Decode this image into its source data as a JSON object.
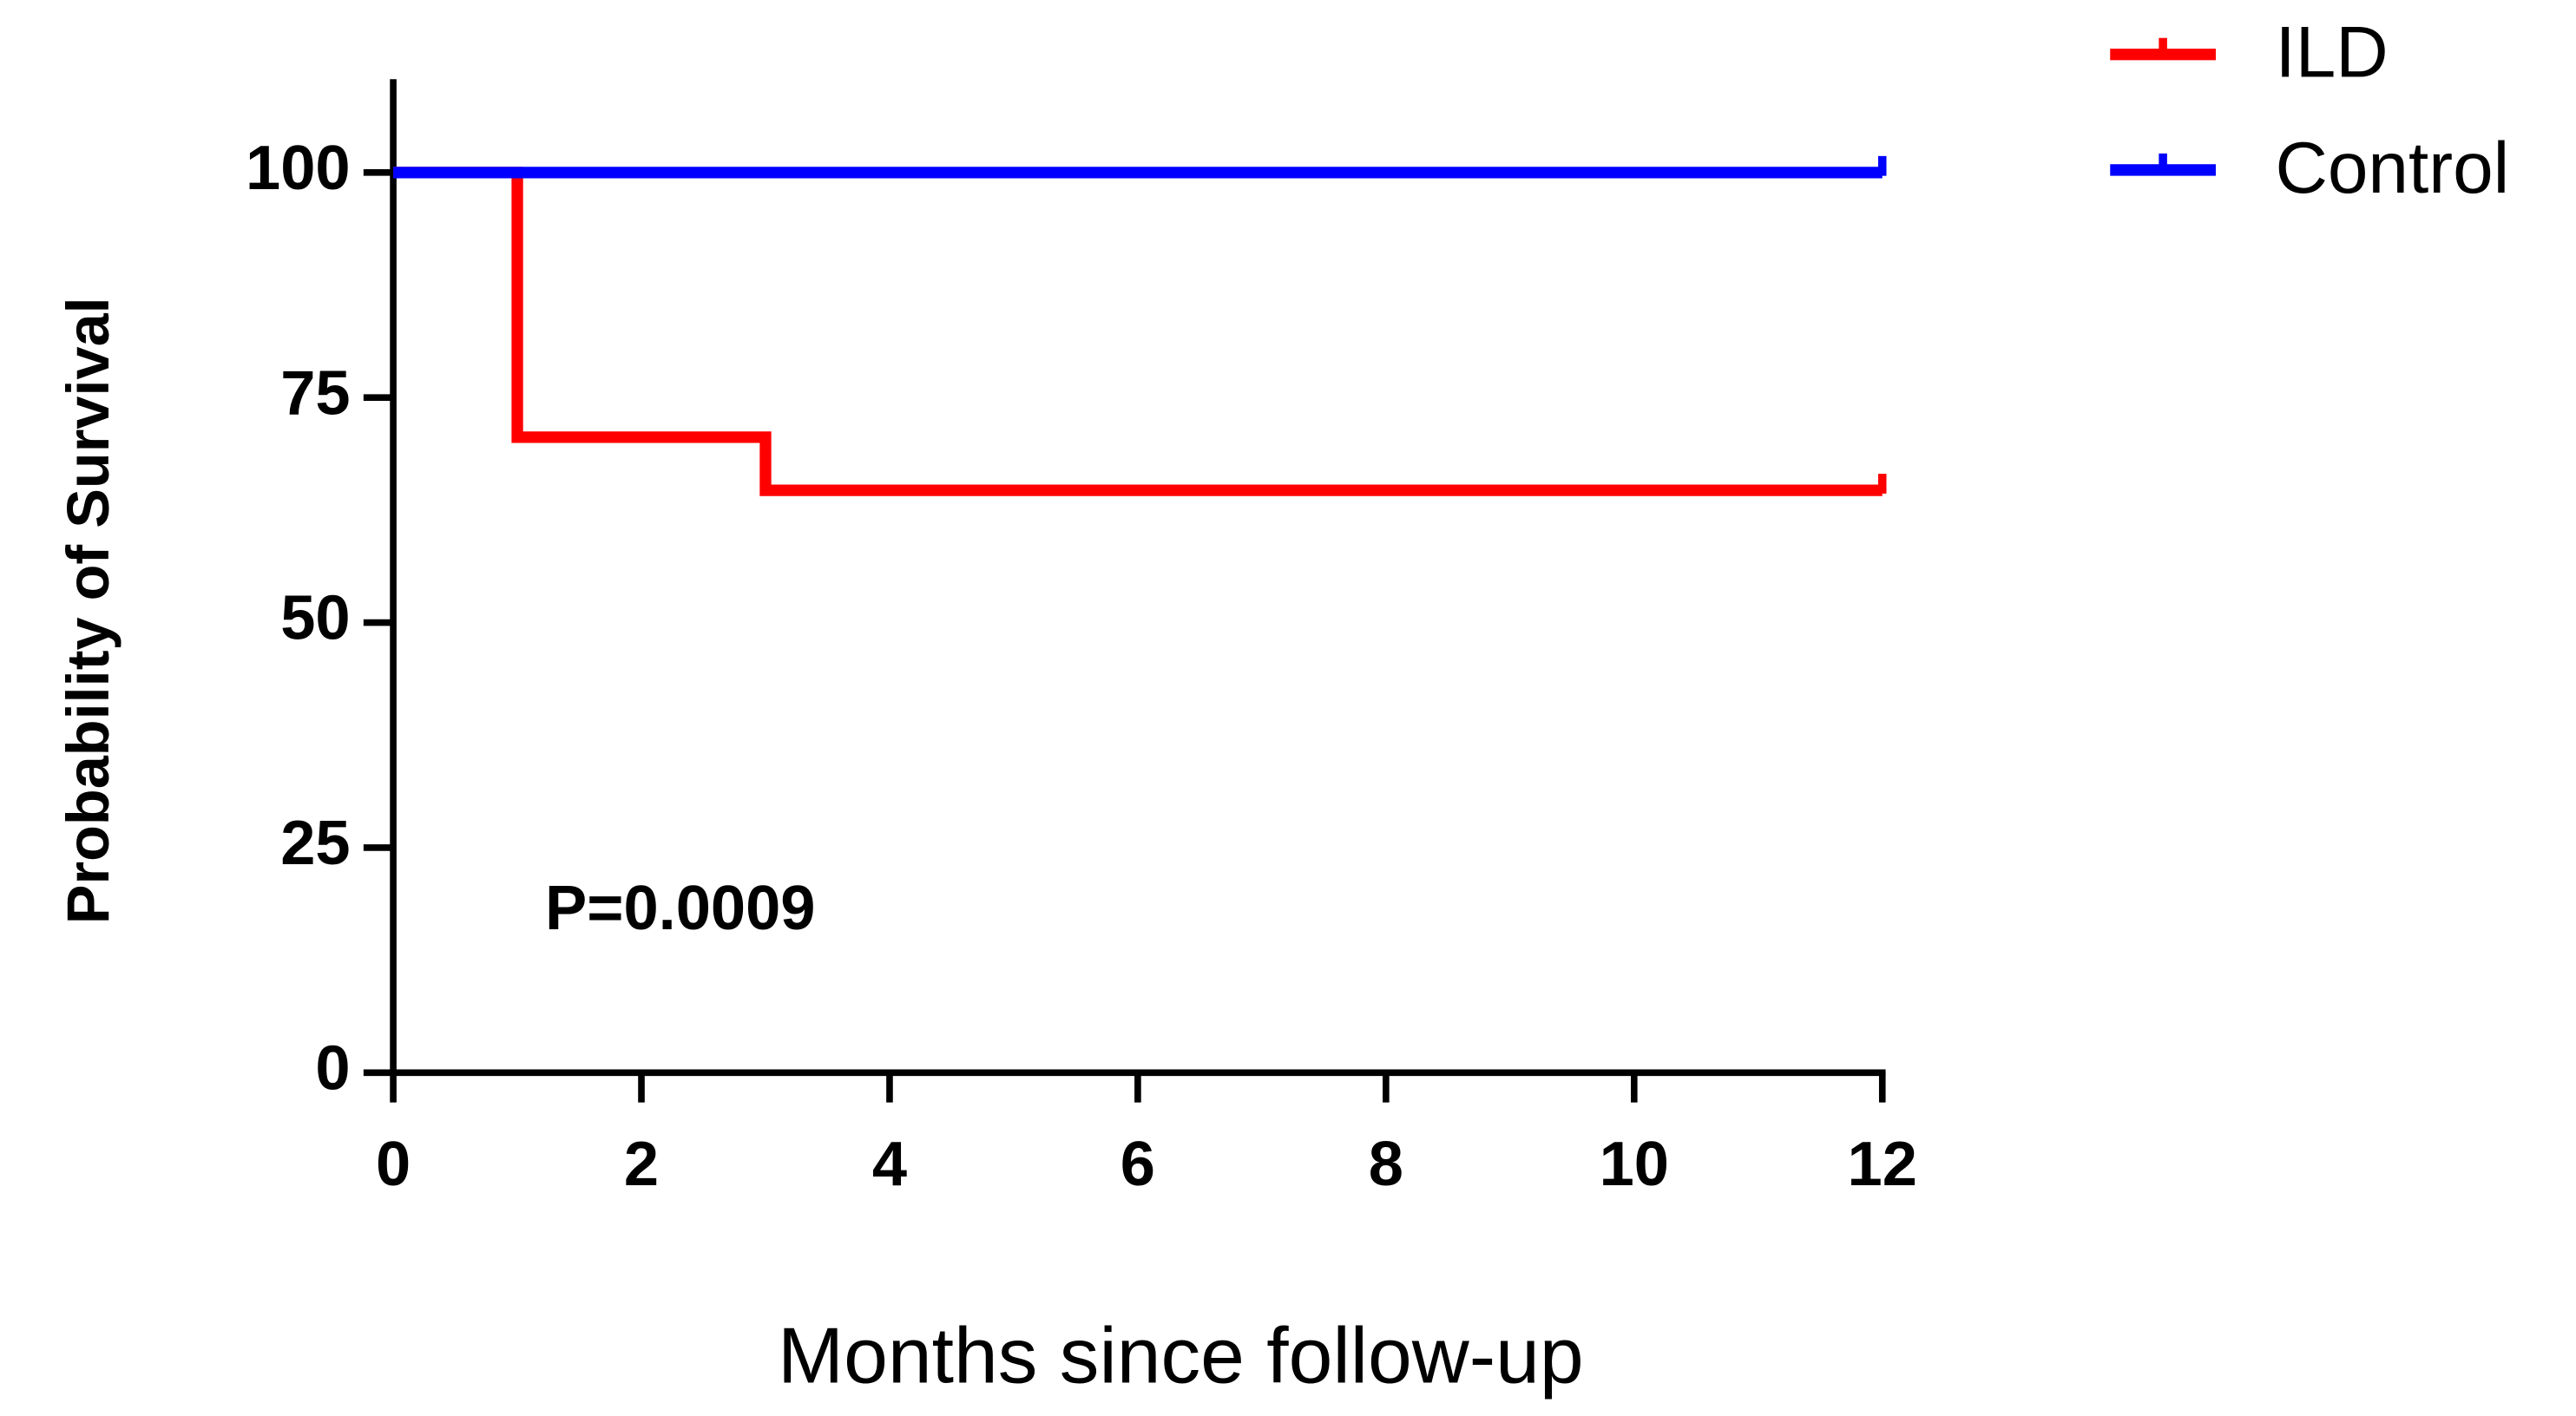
{
  "chart_data": {
    "type": "line",
    "x_label": "Months since follow-up",
    "y_label": "Probability of Survival",
    "annotation": "P=0.0009",
    "xlim": [
      0,
      12
    ],
    "ylim": [
      0,
      110
    ],
    "xticks": [
      0,
      2,
      4,
      6,
      8,
      10,
      12
    ],
    "yticks": [
      0,
      25,
      50,
      75,
      100
    ],
    "grid": false,
    "legend": "top-right",
    "series": [
      {
        "name": "ILD",
        "color": "#ff0000",
        "x": [
          0,
          1,
          1,
          3,
          3,
          12
        ],
        "values": [
          100,
          100,
          70.6,
          70.6,
          64.7,
          64.7
        ]
      },
      {
        "name": "Control",
        "color": "#0000ff",
        "x": [
          0,
          12
        ],
        "values": [
          100,
          100
        ]
      }
    ]
  }
}
